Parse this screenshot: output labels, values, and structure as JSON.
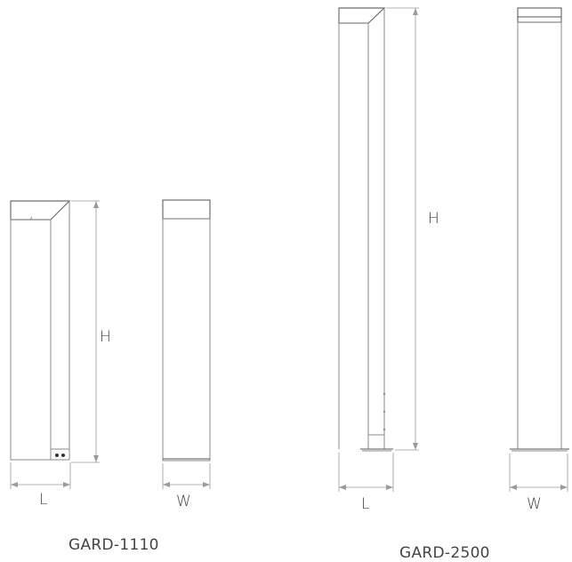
{
  "products": [
    {
      "model": "GARD-1110",
      "dimensions": {
        "height": "H",
        "length": "L",
        "width": "W"
      }
    },
    {
      "model": "GARD-2500",
      "dimensions": {
        "height": "H",
        "length": "L",
        "width": "W"
      }
    }
  ]
}
